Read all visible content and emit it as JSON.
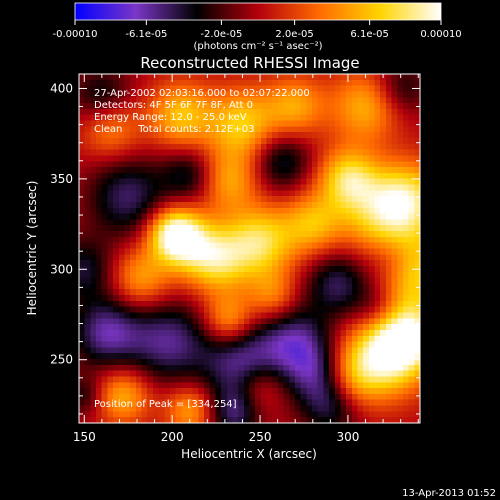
{
  "colorbar": {
    "ticks": [
      "-0.00010",
      "-6.1e-05",
      "-2.0e-05",
      "2.0e-05",
      "6.1e-05",
      "0.00010"
    ],
    "tick_values": [
      -0.0001,
      -6.1e-05,
      -2e-05,
      2e-05,
      6.1e-05,
      0.0001
    ],
    "range": [
      -0.0001,
      0.0001
    ],
    "unit_label": "(photons cm⁻² s⁻¹ asec⁻²)",
    "colors": [
      "#0000ff",
      "#7b36c6",
      "#000000",
      "#b3000c",
      "#ff6a00",
      "#ffd400",
      "#ffffff"
    ]
  },
  "chart_data": {
    "type": "heatmap",
    "title": "Reconstructed RHESSI Image",
    "xlabel": "Heliocentric X (arcsec)",
    "ylabel": "Heliocentric Y (arcsec)",
    "xlim": [
      147,
      341
    ],
    "ylim": [
      215,
      408
    ],
    "xticks": [
      150,
      200,
      250,
      300
    ],
    "yticks": [
      250,
      300,
      350,
      400
    ],
    "xtick_labels": [
      "150",
      "200",
      "250",
      "300"
    ],
    "ytick_labels": [
      "250",
      "300",
      "350",
      "400"
    ],
    "annotations": [
      "27-Apr-2002 02:03:16.000 to 02:07:22.000",
      "Detectors: 4F 5F 6F 7F 8F, Att 0",
      "Energy Range: 12.0 - 25.0 keV",
      "Clean     Total counts: 2.12E+03"
    ],
    "peak_label": "Position of Peak = [334,254]",
    "peak": [
      334,
      254
    ],
    "sources": [
      {
        "x": 333,
        "y": 262,
        "v": 9.5e-05,
        "s": 14
      },
      {
        "x": 318,
        "y": 250,
        "v": 7e-05,
        "s": 16
      },
      {
        "x": 336,
        "y": 300,
        "v": 7.5e-05,
        "s": 16
      },
      {
        "x": 335,
        "y": 340,
        "v": 6.5e-05,
        "s": 14
      },
      {
        "x": 318,
        "y": 330,
        "v": 6e-05,
        "s": 16
      },
      {
        "x": 250,
        "y": 315,
        "v": 7.5e-05,
        "s": 14
      },
      {
        "x": 225,
        "y": 305,
        "v": 7e-05,
        "s": 13
      },
      {
        "x": 207,
        "y": 316,
        "v": 6e-05,
        "s": 12
      },
      {
        "x": 200,
        "y": 320,
        "v": 7e-05,
        "s": 10
      },
      {
        "x": 280,
        "y": 325,
        "v": 5.5e-05,
        "s": 12
      },
      {
        "x": 300,
        "y": 350,
        "v": 7e-05,
        "s": 12
      },
      {
        "x": 310,
        "y": 390,
        "v": 5.5e-05,
        "s": 14
      },
      {
        "x": 270,
        "y": 390,
        "v": 5e-05,
        "s": 12
      },
      {
        "x": 240,
        "y": 380,
        "v": 6.5e-05,
        "s": 14
      },
      {
        "x": 205,
        "y": 385,
        "v": 6e-05,
        "s": 13
      },
      {
        "x": 165,
        "y": 378,
        "v": 4.5e-05,
        "s": 12
      },
      {
        "x": 232,
        "y": 349,
        "v": 5e-05,
        "s": 12
      },
      {
        "x": 182,
        "y": 295,
        "v": 5e-05,
        "s": 12
      },
      {
        "x": 257,
        "y": 285,
        "v": 4e-05,
        "s": 10
      },
      {
        "x": 232,
        "y": 272,
        "v": 5.5e-05,
        "s": 10
      },
      {
        "x": 172,
        "y": 230,
        "v": 5.5e-05,
        "s": 11
      },
      {
        "x": 210,
        "y": 222,
        "v": 5e-05,
        "s": 10
      },
      {
        "x": 250,
        "y": 235,
        "v": 3.5e-05,
        "s": 10
      },
      {
        "x": 300,
        "y": 240,
        "v": 4e-05,
        "s": 12
      },
      {
        "x": 160,
        "y": 395,
        "v": -4e-05,
        "s": 12
      },
      {
        "x": 175,
        "y": 340,
        "v": -5e-05,
        "s": 16
      },
      {
        "x": 210,
        "y": 352,
        "v": -4e-05,
        "s": 11
      },
      {
        "x": 262,
        "y": 360,
        "v": -4.5e-05,
        "s": 12
      },
      {
        "x": 330,
        "y": 400,
        "v": -3.5e-05,
        "s": 11
      },
      {
        "x": 325,
        "y": 305,
        "v": -4e-05,
        "s": 11
      },
      {
        "x": 295,
        "y": 292,
        "v": -5e-05,
        "s": 13
      },
      {
        "x": 318,
        "y": 278,
        "v": -3.5e-05,
        "s": 10
      },
      {
        "x": 150,
        "y": 300,
        "v": -4e-05,
        "s": 12
      },
      {
        "x": 163,
        "y": 265,
        "v": -6e-05,
        "s": 14
      },
      {
        "x": 198,
        "y": 260,
        "v": -5.5e-05,
        "s": 16
      },
      {
        "x": 240,
        "y": 248,
        "v": -6e-05,
        "s": 16
      },
      {
        "x": 270,
        "y": 260,
        "v": -5.5e-05,
        "s": 14
      },
      {
        "x": 283,
        "y": 243,
        "v": -4.5e-05,
        "s": 12
      },
      {
        "x": 235,
        "y": 220,
        "v": -4.5e-05,
        "s": 10
      },
      {
        "x": 290,
        "y": 225,
        "v": -4.5e-05,
        "s": 12
      },
      {
        "x": 150,
        "y": 230,
        "v": -3e-05,
        "s": 8
      }
    ]
  },
  "footer": {
    "timestamp": "13-Apr-2013 01:52"
  }
}
